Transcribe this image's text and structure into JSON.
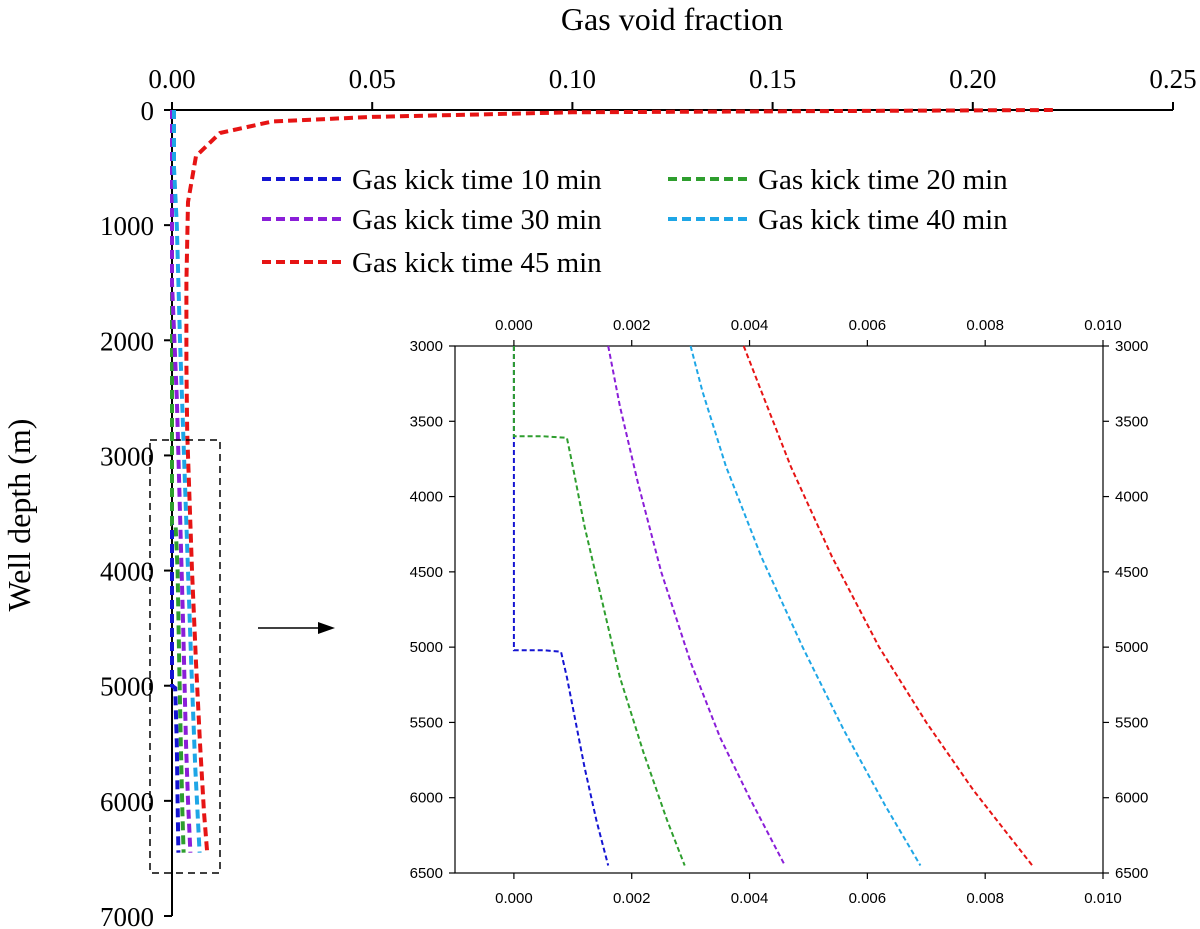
{
  "chart_data": [
    {
      "type": "line",
      "name": "main",
      "xlabel": "Gas void fraction",
      "ylabel": "Well depth (m)",
      "xlim": [
        0,
        0.25
      ],
      "ylim": [
        0,
        7000
      ],
      "y_inverted": true,
      "x_axis_position": "top",
      "xticks": [
        0,
        0.05,
        0.1,
        0.15,
        0.2,
        0.25
      ],
      "xtick_labels": [
        "0.00",
        "0.05",
        "0.10",
        "0.15",
        "0.20",
        "0.25"
      ],
      "yticks": [
        0,
        1000,
        2000,
        3000,
        4000,
        5000,
        6000,
        7000
      ],
      "ytick_labels": [
        "0",
        "1000",
        "2000",
        "3000",
        "4000",
        "5000",
        "6000",
        "7000"
      ],
      "grid": false,
      "legend_position": "upper-right",
      "series": [
        {
          "name": "Gas kick time 10 min",
          "color": "#1414d2",
          "x": [
            0,
            0,
            0.0008,
            0.0012,
            0.0014,
            0.0016
          ],
          "y": [
            0,
            5000,
            5020,
            5500,
            6000,
            6450
          ]
        },
        {
          "name": "Gas kick time 20 min",
          "color": "#2e9e2e",
          "x": [
            0,
            0,
            0.0009,
            0.0014,
            0.0018,
            0.0022,
            0.0026,
            0.0029
          ],
          "y": [
            0,
            3600,
            3610,
            4000,
            4800,
            5500,
            6100,
            6450
          ]
        },
        {
          "name": "Gas kick time 30 min",
          "color": "#8a1ed8",
          "x": [
            0,
            0,
            0.0006,
            0.0012,
            0.0016,
            0.002,
            0.0028,
            0.0035,
            0.004,
            0.0046
          ],
          "y": [
            0,
            1500,
            2000,
            2500,
            3000,
            3500,
            4500,
            5500,
            6000,
            6450
          ]
        },
        {
          "name": "Gas kick time 40 min",
          "color": "#1ea6e6",
          "x": [
            0.0005,
            0.0005,
            0.0012,
            0.002,
            0.0025,
            0.003,
            0.0038,
            0.0048,
            0.0058,
            0.0069
          ],
          "y": [
            0,
            500,
            1000,
            2000,
            2500,
            3000,
            3800,
            4800,
            5700,
            6450
          ]
        },
        {
          "name": "Gas kick time 45 min",
          "color": "#e61414",
          "x": [
            0.22,
            0.1,
            0.05,
            0.025,
            0.012,
            0.006,
            0.004,
            0.0036,
            0.0036,
            0.0038,
            0.004,
            0.005,
            0.006,
            0.007,
            0.008,
            0.0088
          ],
          "y": [
            0,
            20,
            60,
            100,
            200,
            400,
            800,
            1500,
            2200,
            2800,
            3000,
            4000,
            4800,
            5500,
            6100,
            6450
          ]
        }
      ]
    },
    {
      "type": "line",
      "name": "inset",
      "xlim": [
        -0.001,
        0.01
      ],
      "ylim": [
        3000,
        6500
      ],
      "y_inverted": true,
      "xticks": [
        0,
        0.002,
        0.004,
        0.006,
        0.008,
        0.01
      ],
      "xtick_labels": [
        "0.000",
        "0.002",
        "0.004",
        "0.006",
        "0.008",
        "0.010"
      ],
      "yticks": [
        3000,
        3500,
        4000,
        4500,
        5000,
        5500,
        6000,
        6500
      ],
      "ytick_labels": [
        "3000",
        "3500",
        "4000",
        "4500",
        "5000",
        "5500",
        "6000",
        "6500"
      ],
      "grid": false,
      "series": [
        {
          "color": "#1414d2",
          "x": [
            0,
            0,
            0.0005,
            0.0008,
            0.0009,
            0.001,
            0.0012,
            0.0014,
            0.0016
          ],
          "y": [
            3000,
            5020,
            5020,
            5030,
            5200,
            5400,
            5800,
            6150,
            6450
          ]
        },
        {
          "color": "#2e9e2e",
          "x": [
            0,
            0,
            0.0005,
            0.0009,
            0.001,
            0.0012,
            0.0015,
            0.0018,
            0.0022,
            0.0026,
            0.0029
          ],
          "y": [
            3000,
            3600,
            3600,
            3610,
            3800,
            4200,
            4700,
            5200,
            5700,
            6150,
            6450
          ]
        },
        {
          "color": "#8a1ed8",
          "x": [
            0.0016,
            0.0018,
            0.0021,
            0.0025,
            0.003,
            0.0035,
            0.004,
            0.0046
          ],
          "y": [
            3000,
            3400,
            3900,
            4500,
            5100,
            5600,
            6000,
            6450
          ]
        },
        {
          "color": "#1ea6e6",
          "x": [
            0.003,
            0.0032,
            0.0036,
            0.0042,
            0.0049,
            0.0056,
            0.0063,
            0.0069
          ],
          "y": [
            3000,
            3300,
            3800,
            4400,
            5000,
            5550,
            6050,
            6450
          ]
        },
        {
          "color": "#e61414",
          "x": [
            0.0039,
            0.0042,
            0.0047,
            0.0054,
            0.0062,
            0.007,
            0.0078,
            0.0084,
            0.0088
          ],
          "y": [
            3000,
            3300,
            3800,
            4400,
            5000,
            5500,
            5950,
            6250,
            6450
          ]
        }
      ]
    }
  ]
}
